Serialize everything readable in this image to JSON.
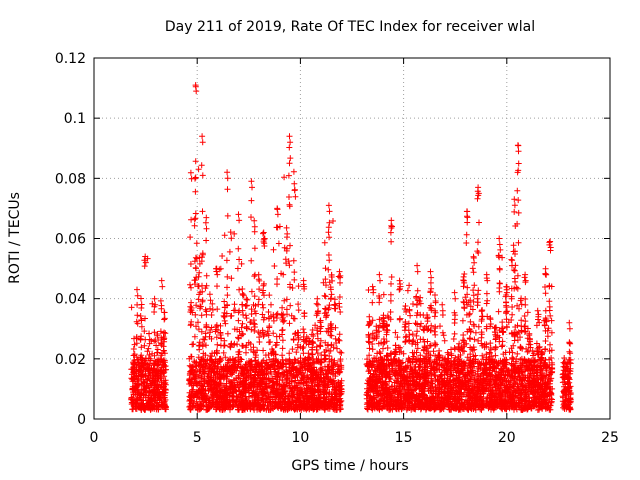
{
  "chart_data": {
    "type": "scatter",
    "title": "Day 211 of 2019, Rate Of TEC Index for receiver wlal",
    "xlabel": "GPS time / hours",
    "ylabel": "ROTI / TECUs",
    "xlim": [
      0,
      25
    ],
    "ylim": [
      0,
      0.12
    ],
    "x_ticks": [
      "0",
      "5",
      "10",
      "15",
      "20",
      "25"
    ],
    "y_ticks": [
      "0",
      "0.02",
      "0.04",
      "0.06",
      "0.08",
      "0.1",
      "0.12"
    ],
    "x_tick_values": [
      0,
      5,
      10,
      15,
      20,
      25
    ],
    "y_tick_values": [
      0,
      0.02,
      0.04,
      0.06,
      0.08,
      0.1,
      0.12
    ],
    "grid": true,
    "marker": "+",
    "color": "#ff0000",
    "data_note": "approximate ROTI envelope per time window (points are dense); base ~0.005",
    "clusters": [
      {
        "x_start": 1.8,
        "x_end": 2.2,
        "y_max": 0.043
      },
      {
        "x_start": 2.2,
        "x_end": 2.6,
        "y_max": 0.054
      },
      {
        "x_start": 2.6,
        "x_end": 3.0,
        "y_max": 0.04
      },
      {
        "x_start": 3.0,
        "x_end": 3.5,
        "y_max": 0.046
      },
      {
        "x_start": 4.6,
        "x_end": 5.0,
        "y_max": 0.111
      },
      {
        "x_start": 5.0,
        "x_end": 5.5,
        "y_max": 0.094
      },
      {
        "x_start": 5.5,
        "x_end": 6.2,
        "y_max": 0.05
      },
      {
        "x_start": 6.2,
        "x_end": 6.7,
        "y_max": 0.082
      },
      {
        "x_start": 6.7,
        "x_end": 7.3,
        "y_max": 0.068
      },
      {
        "x_start": 7.3,
        "x_end": 7.9,
        "y_max": 0.079
      },
      {
        "x_start": 7.9,
        "x_end": 8.6,
        "y_max": 0.062
      },
      {
        "x_start": 8.6,
        "x_end": 9.2,
        "y_max": 0.07
      },
      {
        "x_start": 9.2,
        "x_end": 9.8,
        "y_max": 0.094
      },
      {
        "x_start": 9.8,
        "x_end": 10.5,
        "y_max": 0.046
      },
      {
        "x_start": 10.5,
        "x_end": 11.1,
        "y_max": 0.04
      },
      {
        "x_start": 11.1,
        "x_end": 11.6,
        "y_max": 0.071
      },
      {
        "x_start": 11.6,
        "x_end": 12.0,
        "y_max": 0.049
      },
      {
        "x_start": 13.2,
        "x_end": 13.6,
        "y_max": 0.044
      },
      {
        "x_start": 13.6,
        "x_end": 14.1,
        "y_max": 0.048
      },
      {
        "x_start": 14.1,
        "x_end": 14.5,
        "y_max": 0.066
      },
      {
        "x_start": 14.5,
        "x_end": 15.2,
        "y_max": 0.046
      },
      {
        "x_start": 15.2,
        "x_end": 15.9,
        "y_max": 0.051
      },
      {
        "x_start": 15.9,
        "x_end": 16.6,
        "y_max": 0.049
      },
      {
        "x_start": 16.6,
        "x_end": 17.2,
        "y_max": 0.038
      },
      {
        "x_start": 17.2,
        "x_end": 17.8,
        "y_max": 0.042
      },
      {
        "x_start": 17.8,
        "x_end": 18.3,
        "y_max": 0.069
      },
      {
        "x_start": 18.3,
        "x_end": 18.7,
        "y_max": 0.077
      },
      {
        "x_start": 18.7,
        "x_end": 19.3,
        "y_max": 0.048
      },
      {
        "x_start": 19.3,
        "x_end": 19.9,
        "y_max": 0.06
      },
      {
        "x_start": 19.9,
        "x_end": 20.3,
        "y_max": 0.053
      },
      {
        "x_start": 20.3,
        "x_end": 20.6,
        "y_max": 0.091
      },
      {
        "x_start": 20.6,
        "x_end": 21.2,
        "y_max": 0.048
      },
      {
        "x_start": 21.2,
        "x_end": 21.8,
        "y_max": 0.036
      },
      {
        "x_start": 21.8,
        "x_end": 22.2,
        "y_max": 0.059
      },
      {
        "x_start": 22.7,
        "x_end": 23.1,
        "y_max": 0.032
      }
    ]
  }
}
